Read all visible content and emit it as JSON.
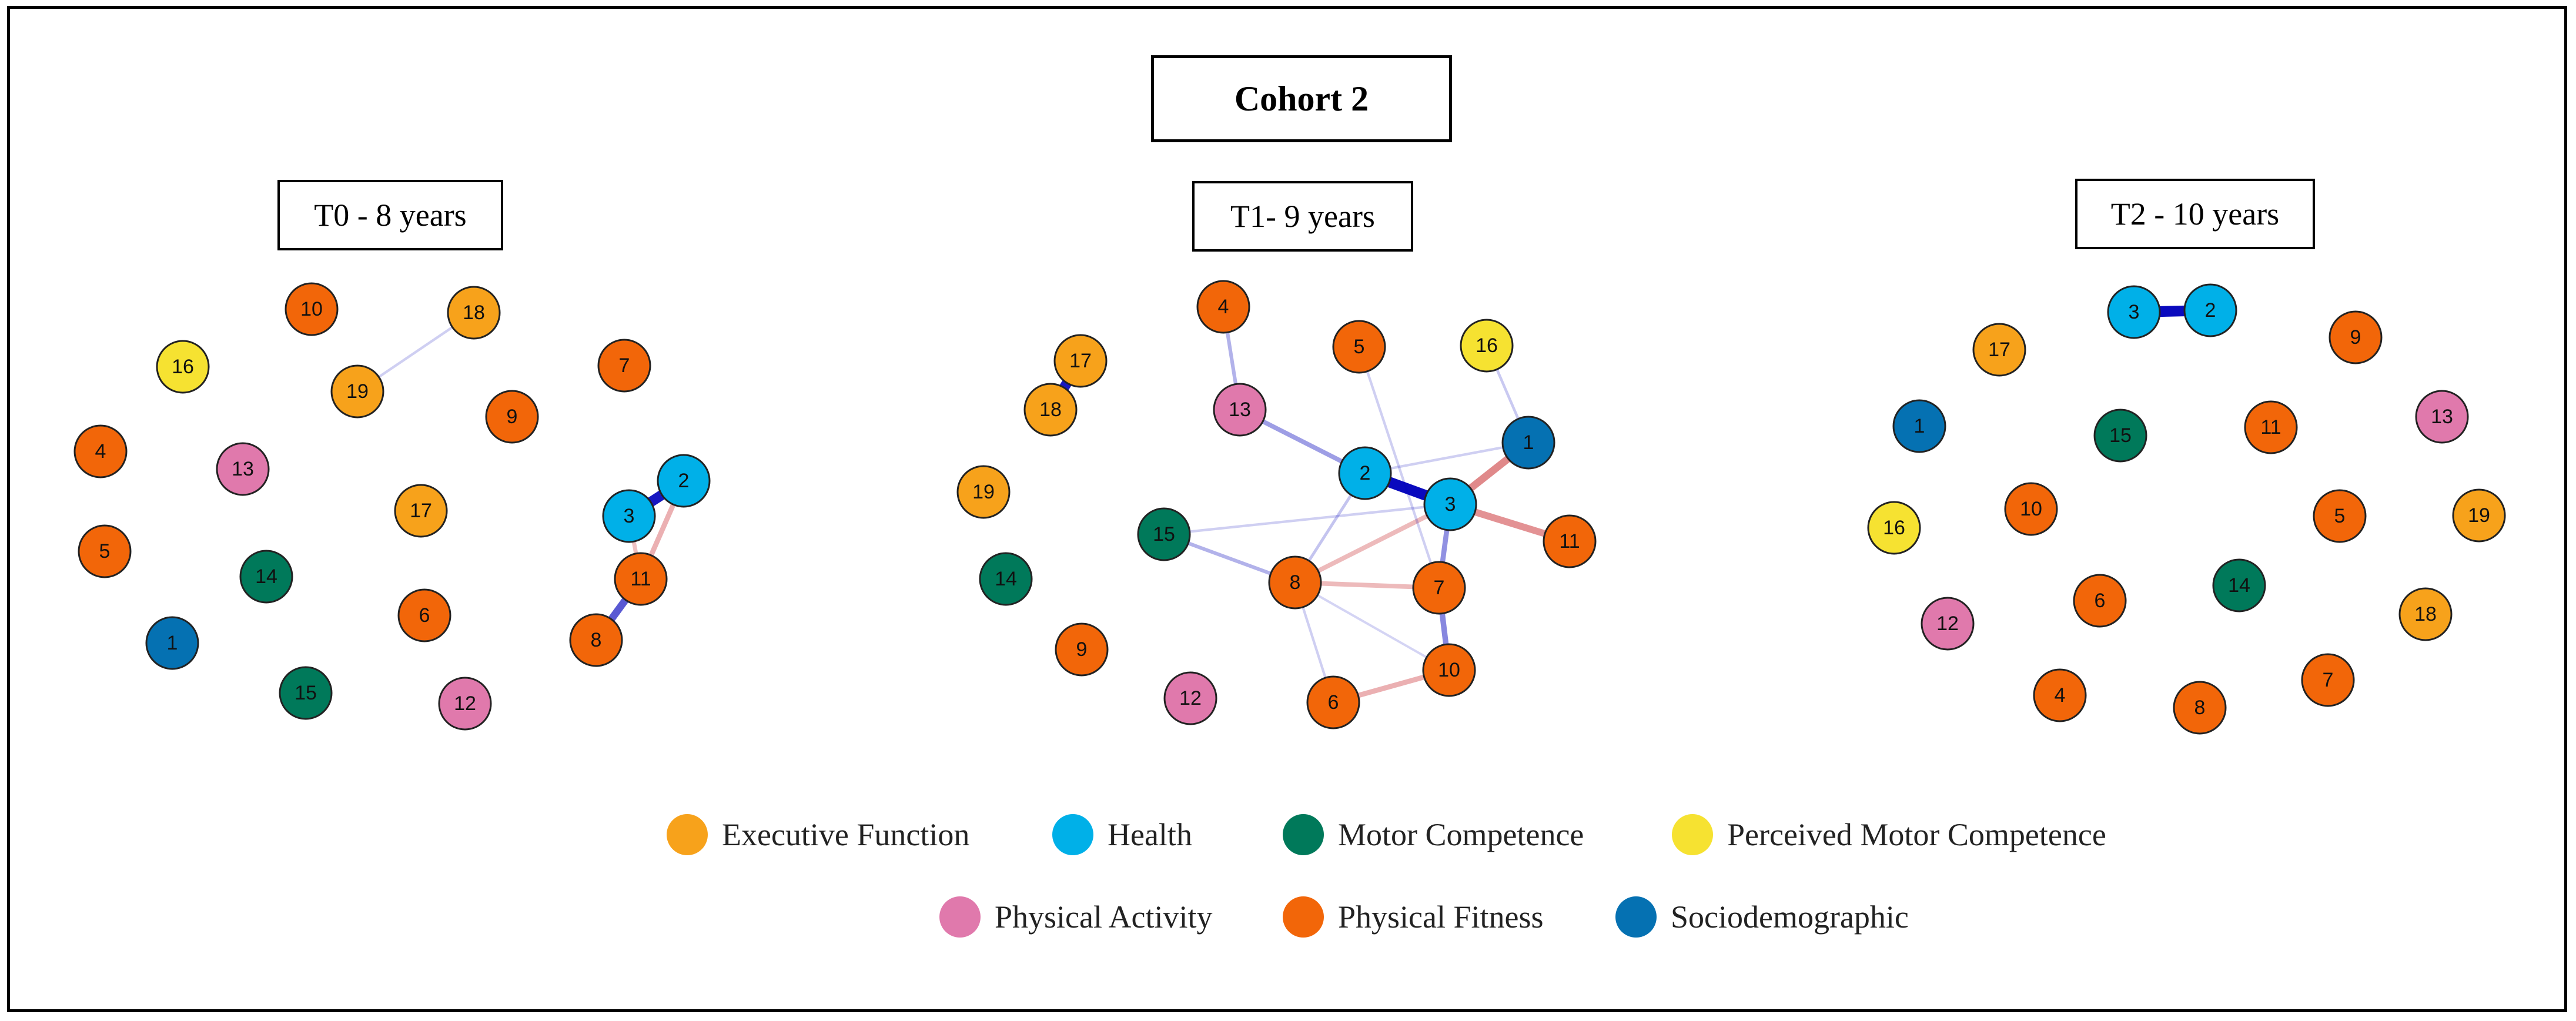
{
  "title": "Cohort 2",
  "legend": [
    {
      "key": "ef",
      "label": "Executive Function",
      "color": "#F7A21B"
    },
    {
      "key": "health",
      "label": "Health",
      "color": "#00B0E8"
    },
    {
      "key": "mc",
      "label": "Motor Competence",
      "color": "#00795A"
    },
    {
      "key": "pmc",
      "label": "Perceived Motor Competence",
      "color": "#F6E231"
    },
    {
      "key": "pa",
      "label": "Physical Activity",
      "color": "#E079AC"
    },
    {
      "key": "pf",
      "label": "Physical Fitness",
      "color": "#F26609"
    },
    {
      "key": "socio",
      "label": "Sociodemographic",
      "color": "#0571B2"
    }
  ],
  "edge_colors": {
    "positive": "#0000BB",
    "negative": "#D0494C"
  },
  "panels": [
    {
      "title": "T0 - 8 years",
      "nodes": [
        {
          "id": "10",
          "group": "pf"
        },
        {
          "id": "18",
          "group": "ef"
        },
        {
          "id": "16",
          "group": "pmc"
        },
        {
          "id": "19",
          "group": "ef"
        },
        {
          "id": "7",
          "group": "pf"
        },
        {
          "id": "9",
          "group": "pf"
        },
        {
          "id": "4",
          "group": "pf"
        },
        {
          "id": "13",
          "group": "pa"
        },
        {
          "id": "17",
          "group": "ef"
        },
        {
          "id": "2",
          "group": "health"
        },
        {
          "id": "3",
          "group": "health"
        },
        {
          "id": "5",
          "group": "pf"
        },
        {
          "id": "14",
          "group": "mc"
        },
        {
          "id": "11",
          "group": "pf"
        },
        {
          "id": "6",
          "group": "pf"
        },
        {
          "id": "1",
          "group": "socio"
        },
        {
          "id": "8",
          "group": "pf"
        },
        {
          "id": "15",
          "group": "mc"
        },
        {
          "id": "12",
          "group": "pa"
        }
      ],
      "edges": [
        {
          "from": "3",
          "to": "2",
          "sign": "positive",
          "strength": 0.9
        },
        {
          "from": "11",
          "to": "8",
          "sign": "positive",
          "strength": 0.6
        },
        {
          "from": "2",
          "to": "11",
          "sign": "negative",
          "strength": 0.35
        },
        {
          "from": "3",
          "to": "11",
          "sign": "negative",
          "strength": 0.25
        },
        {
          "from": "18",
          "to": "19",
          "sign": "positive",
          "strength": 0.08
        }
      ]
    },
    {
      "title": "T1- 9 years",
      "nodes": [
        {
          "id": "4",
          "group": "pf"
        },
        {
          "id": "5",
          "group": "pf"
        },
        {
          "id": "16",
          "group": "pmc"
        },
        {
          "id": "17",
          "group": "ef"
        },
        {
          "id": "18",
          "group": "ef"
        },
        {
          "id": "13",
          "group": "pa"
        },
        {
          "id": "1",
          "group": "socio"
        },
        {
          "id": "2",
          "group": "health"
        },
        {
          "id": "19",
          "group": "ef"
        },
        {
          "id": "3",
          "group": "health"
        },
        {
          "id": "15",
          "group": "mc"
        },
        {
          "id": "11",
          "group": "pf"
        },
        {
          "id": "14",
          "group": "mc"
        },
        {
          "id": "8",
          "group": "pf"
        },
        {
          "id": "7",
          "group": "pf"
        },
        {
          "id": "9",
          "group": "pf"
        },
        {
          "id": "10",
          "group": "pf"
        },
        {
          "id": "12",
          "group": "pa"
        },
        {
          "id": "6",
          "group": "pf"
        }
      ],
      "edges": [
        {
          "from": "2",
          "to": "3",
          "sign": "positive",
          "strength": 0.95
        },
        {
          "from": "17",
          "to": "18",
          "sign": "positive",
          "strength": 0.9
        },
        {
          "from": "3",
          "to": "1",
          "sign": "negative",
          "strength": 0.6
        },
        {
          "from": "3",
          "to": "11",
          "sign": "negative",
          "strength": 0.55
        },
        {
          "from": "13",
          "to": "2",
          "sign": "positive",
          "strength": 0.3
        },
        {
          "from": "4",
          "to": "13",
          "sign": "positive",
          "strength": 0.2
        },
        {
          "from": "3",
          "to": "7",
          "sign": "positive",
          "strength": 0.35
        },
        {
          "from": "7",
          "to": "10",
          "sign": "positive",
          "strength": 0.4
        },
        {
          "from": "6",
          "to": "10",
          "sign": "negative",
          "strength": 0.35
        },
        {
          "from": "8",
          "to": "3",
          "sign": "negative",
          "strength": 0.3
        },
        {
          "from": "8",
          "to": "7",
          "sign": "negative",
          "strength": 0.3
        },
        {
          "from": "15",
          "to": "8",
          "sign": "positive",
          "strength": 0.2
        },
        {
          "from": "8",
          "to": "2",
          "sign": "positive",
          "strength": 0.12
        },
        {
          "from": "15",
          "to": "3",
          "sign": "positive",
          "strength": 0.08
        },
        {
          "from": "16",
          "to": "1",
          "sign": "positive",
          "strength": 0.1
        },
        {
          "from": "5",
          "to": "7",
          "sign": "positive",
          "strength": 0.08
        },
        {
          "from": "8",
          "to": "6",
          "sign": "positive",
          "strength": 0.08
        },
        {
          "from": "8",
          "to": "10",
          "sign": "positive",
          "strength": 0.06
        },
        {
          "from": "2",
          "to": "1",
          "sign": "positive",
          "strength": 0.08
        }
      ]
    },
    {
      "title": "T2 - 10 years",
      "nodes": [
        {
          "id": "3",
          "group": "health"
        },
        {
          "id": "2",
          "group": "health"
        },
        {
          "id": "17",
          "group": "ef"
        },
        {
          "id": "9",
          "group": "pf"
        },
        {
          "id": "1",
          "group": "socio"
        },
        {
          "id": "15",
          "group": "mc"
        },
        {
          "id": "11",
          "group": "pf"
        },
        {
          "id": "13",
          "group": "pa"
        },
        {
          "id": "16",
          "group": "pmc"
        },
        {
          "id": "10",
          "group": "pf"
        },
        {
          "id": "5",
          "group": "pf"
        },
        {
          "id": "19",
          "group": "ef"
        },
        {
          "id": "14",
          "group": "mc"
        },
        {
          "id": "6",
          "group": "pf"
        },
        {
          "id": "12",
          "group": "pa"
        },
        {
          "id": "18",
          "group": "ef"
        },
        {
          "id": "7",
          "group": "pf"
        },
        {
          "id": "4",
          "group": "pf"
        },
        {
          "id": "8",
          "group": "pf"
        }
      ],
      "edges": [
        {
          "from": "3",
          "to": "2",
          "sign": "positive",
          "strength": 0.95
        }
      ]
    }
  ]
}
